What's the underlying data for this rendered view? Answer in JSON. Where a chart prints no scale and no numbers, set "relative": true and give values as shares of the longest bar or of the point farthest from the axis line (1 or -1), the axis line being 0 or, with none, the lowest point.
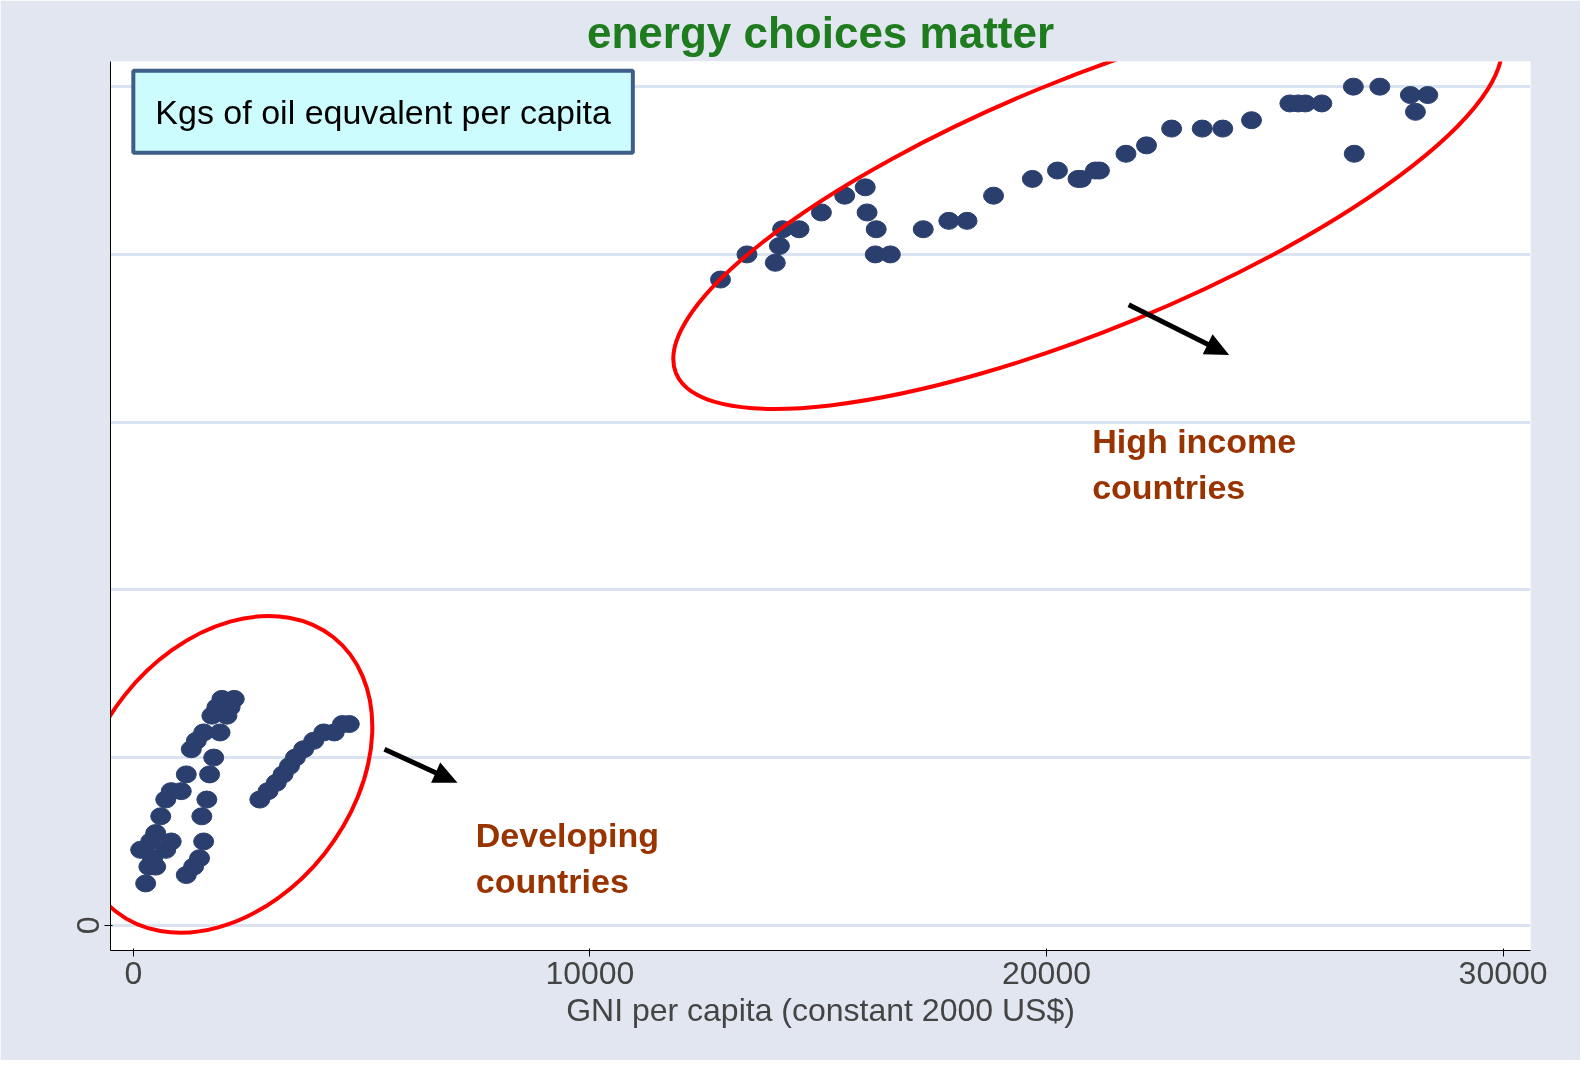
{
  "chart_data": {
    "type": "scatter",
    "title": "energy choices matter",
    "xlabel": "GNI per capita (constant 2000 US$)",
    "relative": true,
    "color": "#2b3f6e",
    "marker": "circle",
    "grid": "y",
    "xlim": [
      -500,
      30600
    ],
    "xticks": [
      0,
      10000,
      20000,
      30000
    ],
    "annotations": [
      "Kgs of oil equvalent per capita",
      "High income\ncountries",
      "Developing\ncountries",
      "0"
    ],
    "x": [
      12860,
      13440,
      14060,
      14150,
      14220,
      14580,
      15070,
      15580,
      16030,
      16070,
      16270,
      16250,
      16580,
      17300,
      17860,
      18260,
      18840,
      19690,
      20240,
      20690,
      20760,
      21070,
      21160,
      21740,
      22190,
      22740,
      23410,
      23860,
      24490,
      25330,
      25510,
      25670,
      26030,
      26720,
      26740,
      27300,
      27970,
      28080,
      28350,
      2770,
      2950,
      3130,
      3280,
      3420,
      3550,
      3730,
      3950,
      4170,
      4400,
      4580,
      4730,
      270,
      340,
      420,
      380,
      490,
      600,
      710,
      830,
      1050,
      1160,
      1270,
      1380,
      1540,
      1720,
      1830,
      1940,
      2120,
      2210,
      1160,
      1320,
      1450,
      1540,
      1500,
      1610,
      1670,
      1760,
      1900,
      2050,
      160,
      490,
      710,
      830
    ],
    "values": [
      0.77,
      0.8,
      0.79,
      0.81,
      0.83,
      0.83,
      0.85,
      0.87,
      0.88,
      0.85,
      0.83,
      0.8,
      0.8,
      0.83,
      0.84,
      0.84,
      0.87,
      0.89,
      0.9,
      0.89,
      0.89,
      0.9,
      0.9,
      0.92,
      0.93,
      0.95,
      0.95,
      0.95,
      0.96,
      0.98,
      0.98,
      0.98,
      0.98,
      1.0,
      0.92,
      1.0,
      0.99,
      0.97,
      0.99,
      0.15,
      0.16,
      0.17,
      0.18,
      0.19,
      0.2,
      0.21,
      0.22,
      0.23,
      0.23,
      0.24,
      0.24,
      0.05,
      0.07,
      0.08,
      0.1,
      0.11,
      0.13,
      0.15,
      0.16,
      0.16,
      0.18,
      0.21,
      0.22,
      0.23,
      0.25,
      0.26,
      0.27,
      0.26,
      0.27,
      0.06,
      0.07,
      0.08,
      0.1,
      0.13,
      0.15,
      0.18,
      0.2,
      0.23,
      0.25,
      0.09,
      0.07,
      0.09,
      0.1
    ]
  }
}
